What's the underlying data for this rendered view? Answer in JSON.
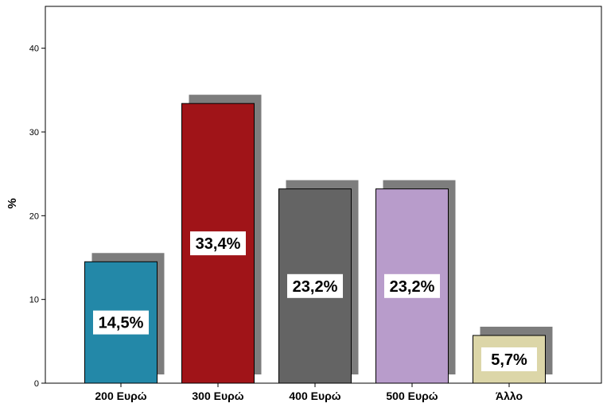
{
  "chart_data": {
    "type": "bar",
    "categories": [
      "200 Ευρώ",
      "300 Ευρώ",
      "400 Ευρώ",
      "500 Ευρώ",
      "Άλλο"
    ],
    "values": [
      14.5,
      33.4,
      23.2,
      23.2,
      5.7
    ],
    "data_labels": [
      "14,5%",
      "33,4%",
      "23,2%",
      "23,2%",
      "5,7%"
    ],
    "colors": [
      "#2388a8",
      "#a01418",
      "#646464",
      "#b89ccb",
      "#dcd6a8"
    ],
    "shadow_color": "#7d7d7d",
    "ylabel": "%",
    "ylim": [
      0,
      45
    ],
    "yticks": [
      0,
      10,
      20,
      30,
      40
    ],
    "grid": false,
    "legend": "none"
  }
}
